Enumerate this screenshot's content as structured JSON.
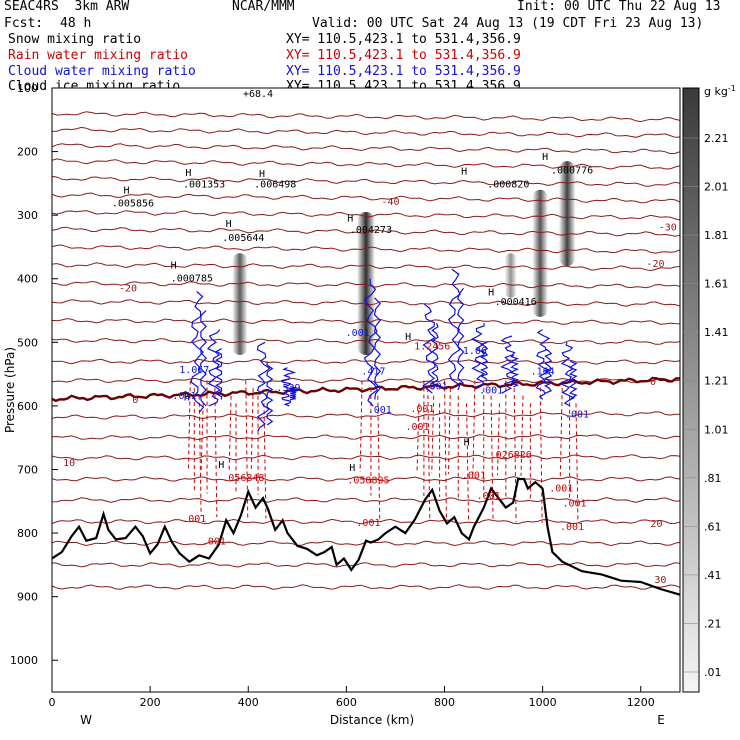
{
  "header": {
    "model": "SEAC4RS  3km ARW",
    "org": "NCAR/MMM",
    "init": "Init: 00 UTC Thu 22 Aug 13",
    "fcst_label": "Fcst:",
    "fcst_value": "48 h",
    "valid": "Valid: 00 UTC Sat 24 Aug 13 (19 CDT Fri 23 Aug 13)"
  },
  "fields": [
    {
      "name": "Snow mixing ratio",
      "xy": "XY= 110.5,423.1 to 531.4,356.9",
      "color": "#000000"
    },
    {
      "name": "Rain water mixing ratio",
      "xy": "XY= 110.5,423.1 to 531.4,356.9",
      "color": "#d00000"
    },
    {
      "name": "Cloud water mixing ratio",
      "xy": "XY= 110.5,423.1 to 531.4,356.9",
      "color": "#1010e0"
    },
    {
      "name": "Cloud ice mixing ratio",
      "xy": "XY= 110.5,423.1 to 531.4,356.9",
      "color": "#000000"
    }
  ],
  "colors": {
    "isotherm": "#8b1a1a",
    "freezing_level": "#6a0000",
    "rain": "#d00000",
    "cloud": "#1010e0",
    "terrain": "#000000"
  },
  "chart_data": {
    "type": "cross-section",
    "xlabel": "Distance (km)",
    "ylabel": "Pressure (hPa)",
    "xlim": [
      0,
      1280
    ],
    "ylim": [
      1050,
      100
    ],
    "x_ticks": [
      0,
      200,
      400,
      600,
      800,
      1000,
      1200
    ],
    "y_ticks": [
      200,
      300,
      400,
      500,
      600,
      700,
      800,
      900,
      1000
    ],
    "y_top_label": "100",
    "direction_left": "W",
    "direction_right": "E",
    "top_max_label": "+68.4",
    "colorbar": {
      "unit": "g kg",
      "unit_exp": "-1",
      "labels": [
        ".01",
        ".21",
        ".41",
        ".61",
        ".81",
        "1.01",
        "1.21",
        "1.41",
        "1.61",
        "1.81",
        "2.01",
        "2.21"
      ]
    },
    "temperature_contour_labels": [
      {
        "text": "-40",
        "x": 690,
        "p": 278
      },
      {
        "text": "-30",
        "x": 1255,
        "p": 318
      },
      {
        "text": "-20",
        "x": 155,
        "p": 414
      },
      {
        "text": "-20",
        "x": 1230,
        "p": 375
      },
      {
        "text": "0",
        "x": 170,
        "p": 589
      },
      {
        "text": "0",
        "x": 775,
        "p": 567
      },
      {
        "text": "0",
        "x": 1225,
        "p": 561
      },
      {
        "text": "10",
        "x": 35,
        "p": 688
      },
      {
        "text": "20",
        "x": 1232,
        "p": 784
      },
      {
        "text": "30",
        "x": 1240,
        "p": 872
      }
    ],
    "terrain_pressure": [
      [
        0,
        840
      ],
      [
        20,
        830
      ],
      [
        40,
        805
      ],
      [
        55,
        790
      ],
      [
        70,
        812
      ],
      [
        90,
        808
      ],
      [
        105,
        770
      ],
      [
        115,
        795
      ],
      [
        130,
        810
      ],
      [
        150,
        808
      ],
      [
        170,
        790
      ],
      [
        185,
        805
      ],
      [
        200,
        832
      ],
      [
        215,
        818
      ],
      [
        230,
        790
      ],
      [
        245,
        815
      ],
      [
        260,
        832
      ],
      [
        280,
        845
      ],
      [
        300,
        835
      ],
      [
        320,
        840
      ],
      [
        340,
        818
      ],
      [
        355,
        780
      ],
      [
        370,
        800
      ],
      [
        385,
        772
      ],
      [
        400,
        735
      ],
      [
        415,
        760
      ],
      [
        430,
        745
      ],
      [
        440,
        762
      ],
      [
        455,
        795
      ],
      [
        470,
        780
      ],
      [
        480,
        800
      ],
      [
        500,
        820
      ],
      [
        520,
        825
      ],
      [
        540,
        835
      ],
      [
        555,
        830
      ],
      [
        570,
        822
      ],
      [
        580,
        850
      ],
      [
        595,
        840
      ],
      [
        610,
        858
      ],
      [
        625,
        842
      ],
      [
        640,
        812
      ],
      [
        650,
        815
      ],
      [
        665,
        810
      ],
      [
        680,
        800
      ],
      [
        700,
        790
      ],
      [
        720,
        800
      ],
      [
        740,
        778
      ],
      [
        760,
        748
      ],
      [
        775,
        732
      ],
      [
        790,
        765
      ],
      [
        805,
        785
      ],
      [
        820,
        775
      ],
      [
        835,
        800
      ],
      [
        850,
        810
      ],
      [
        860,
        790
      ],
      [
        880,
        760
      ],
      [
        895,
        730
      ],
      [
        910,
        745
      ],
      [
        925,
        760
      ],
      [
        940,
        752
      ],
      [
        950,
        715
      ],
      [
        962,
        715
      ],
      [
        970,
        730
      ],
      [
        985,
        720
      ],
      [
        1000,
        730
      ],
      [
        1010,
        790
      ],
      [
        1020,
        830
      ],
      [
        1040,
        845
      ],
      [
        1080,
        860
      ],
      [
        1120,
        865
      ],
      [
        1160,
        875
      ],
      [
        1200,
        877
      ],
      [
        1240,
        888
      ],
      [
        1280,
        897
      ]
    ],
    "isotherms_hpa_at_x0_x1280": [
      [
        140,
        150
      ],
      [
        165,
        175
      ],
      [
        190,
        200
      ],
      [
        215,
        225
      ],
      [
        242,
        252
      ],
      [
        268,
        278
      ],
      [
        295,
        304
      ],
      [
        322,
        330
      ],
      [
        350,
        357
      ],
      [
        378,
        384
      ],
      [
        407,
        412
      ],
      [
        436,
        440
      ],
      [
        466,
        469
      ],
      [
        497,
        500
      ],
      [
        530,
        531
      ],
      [
        560,
        560
      ],
      [
        618,
        612
      ],
      [
        650,
        648
      ],
      [
        682,
        680
      ],
      [
        715,
        715
      ],
      [
        748,
        748
      ],
      [
        782,
        782
      ],
      [
        816,
        816
      ],
      [
        850,
        850
      ],
      [
        885,
        885
      ]
    ],
    "freezing_level_hpa_at_x0_x1280": [
      589,
      558
    ],
    "snow_columns": [
      {
        "x": 383,
        "p_top": 360,
        "p_bottom": 520,
        "max": 1.3
      },
      {
        "x": 640,
        "p_top": 295,
        "p_bottom": 520,
        "max": 2.0
      },
      {
        "x": 935,
        "p_top": 360,
        "p_bottom": 430,
        "max": 0.5
      },
      {
        "x": 995,
        "p_top": 260,
        "p_bottom": 460,
        "max": 1.4
      },
      {
        "x": 1050,
        "p_top": 215,
        "p_bottom": 380,
        "max": 1.7
      }
    ],
    "labels": [
      {
        "text": ".005856",
        "x": 165,
        "p": 280,
        "color": "#000000"
      },
      {
        "text": ".001353",
        "x": 310,
        "p": 250,
        "color": "#000000"
      },
      {
        "text": ".006498",
        "x": 455,
        "p": 250,
        "color": "#000000"
      },
      {
        "text": ".005644",
        "x": 390,
        "p": 334,
        "color": "#000000"
      },
      {
        "text": ".004273",
        "x": 650,
        "p": 322,
        "color": "#000000"
      },
      {
        "text": ".000820",
        "x": 930,
        "p": 250,
        "color": "#000000"
      },
      {
        "text": ".000776",
        "x": 1060,
        "p": 228,
        "color": "#000000"
      },
      {
        "text": ".000785",
        "x": 285,
        "p": 398,
        "color": "#000000"
      },
      {
        "text": ".000416",
        "x": 945,
        "p": 435,
        "color": "#000000"
      },
      {
        "text": ".001",
        "x": 623,
        "p": 484,
        "color": "#1010e0"
      },
      {
        "text": "1.067",
        "x": 290,
        "p": 542,
        "color": "#1010e0"
      },
      {
        "text": ".001",
        "x": 270,
        "p": 583,
        "color": "#1010e0"
      },
      {
        "text": ".539",
        "x": 482,
        "p": 570,
        "color": "#1010e0"
      },
      {
        "text": ".417",
        "x": 655,
        "p": 544,
        "color": "#1010e0"
      },
      {
        "text": ".001",
        "x": 668,
        "p": 605,
        "color": "#1010e0"
      },
      {
        "text": ".001",
        "x": 782,
        "p": 568,
        "color": "#1010e0"
      },
      {
        "text": "1.06",
        "x": 862,
        "p": 512,
        "color": "#1010e0"
      },
      {
        "text": ".001",
        "x": 895,
        "p": 574,
        "color": "#1010e0"
      },
      {
        "text": ".164",
        "x": 1000,
        "p": 544,
        "color": "#1010e0"
      },
      {
        "text": ".001",
        "x": 1070,
        "p": 612,
        "color": "#1010e0"
      },
      {
        "text": ".056848",
        "x": 390,
        "p": 712,
        "color": "#d00000"
      },
      {
        "text": ".050895",
        "x": 645,
        "p": 716,
        "color": "#d00000"
      },
      {
        "text": ".026826",
        "x": 935,
        "p": 676,
        "color": "#d00000"
      },
      {
        "text": ".001",
        "x": 290,
        "p": 776,
        "color": "#d00000"
      },
      {
        "text": ".001",
        "x": 330,
        "p": 812,
        "color": "#d00000"
      },
      {
        "text": ".001",
        "x": 645,
        "p": 783,
        "color": "#d00000"
      },
      {
        "text": ".001",
        "x": 745,
        "p": 632,
        "color": "#d00000"
      },
      {
        "text": ".001",
        "x": 755,
        "p": 603,
        "color": "#d00000"
      },
      {
        "text": ".001",
        "x": 860,
        "p": 708,
        "color": "#d00000"
      },
      {
        "text": ".001",
        "x": 890,
        "p": 740,
        "color": "#d00000"
      },
      {
        "text": ".001",
        "x": 1038,
        "p": 728,
        "color": "#d00000"
      },
      {
        "text": ".001",
        "x": 1065,
        "p": 752,
        "color": "#d00000"
      },
      {
        "text": ".001",
        "x": 1060,
        "p": 789,
        "color": "#d00000"
      },
      {
        "text": "1.2456",
        "x": 775,
        "p": 505,
        "color": "#d00000"
      }
    ],
    "high_markers": [
      {
        "x": 152,
        "p": 260
      },
      {
        "x": 278,
        "p": 232
      },
      {
        "x": 428,
        "p": 234
      },
      {
        "x": 360,
        "p": 312
      },
      {
        "x": 608,
        "p": 304
      },
      {
        "x": 840,
        "p": 230
      },
      {
        "x": 1005,
        "p": 207
      },
      {
        "x": 248,
        "p": 378
      },
      {
        "x": 895,
        "p": 420
      },
      {
        "x": 275,
        "p": 585
      },
      {
        "x": 345,
        "p": 691
      },
      {
        "x": 612,
        "p": 696
      },
      {
        "x": 845,
        "p": 656
      },
      {
        "x": 726,
        "p": 490
      }
    ],
    "rain_shafts_x": [
      282,
      290,
      300,
      308,
      316,
      332,
      365,
      375,
      395,
      410,
      420,
      432,
      632,
      650,
      664,
      748,
      758,
      766,
      778,
      790,
      800,
      812,
      828,
      845,
      862,
      880,
      895,
      912,
      925,
      942,
      960,
      975,
      995,
      1040,
      1055,
      1068
    ]
  }
}
